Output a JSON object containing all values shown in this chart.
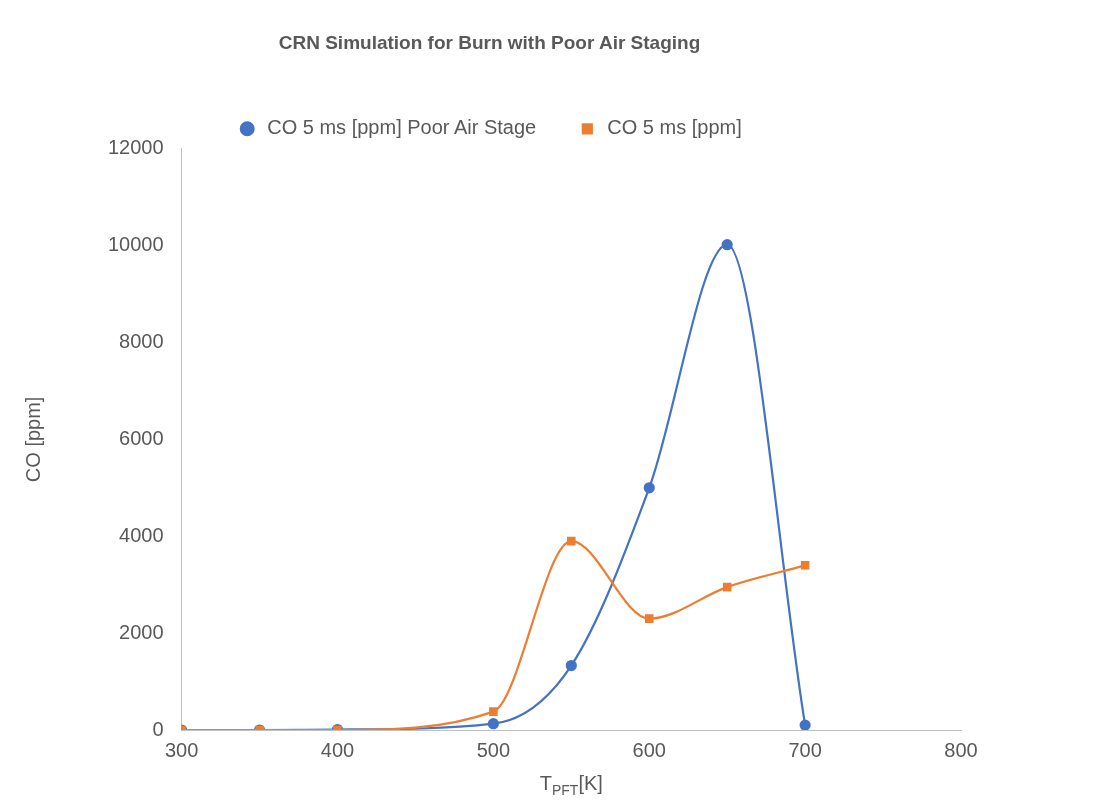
{
  "chart_data": {
    "type": "line",
    "title": "CRN Simulation for Burn with Poor Air Staging",
    "xlabel": "T$_{PFT}$[K]",
    "ylabel": "CO [ppm]",
    "x": [
      300,
      350,
      400,
      500,
      550,
      600,
      650,
      700
    ],
    "series": [
      {
        "name": "CO 5 ms [ppm] Poor Air Stage",
        "color": "#4472c4",
        "marker": "circle",
        "values": [
          0,
          0,
          10,
          130,
          1330,
          5000,
          10020,
          100
        ]
      },
      {
        "name": "CO 5 ms [ppm]",
        "color": "#ed7d31",
        "marker": "square",
        "values": [
          0,
          0,
          0,
          380,
          3900,
          2300,
          2950,
          3400
        ]
      }
    ],
    "xlim": [
      300,
      800
    ],
    "xticks": [
      300,
      400,
      500,
      600,
      700,
      800
    ],
    "ylim": [
      0,
      12000
    ],
    "yticks": [
      0,
      2000,
      4000,
      6000,
      8000,
      10000,
      12000
    ],
    "grid": false,
    "legend": "top",
    "line_style": "solid"
  }
}
